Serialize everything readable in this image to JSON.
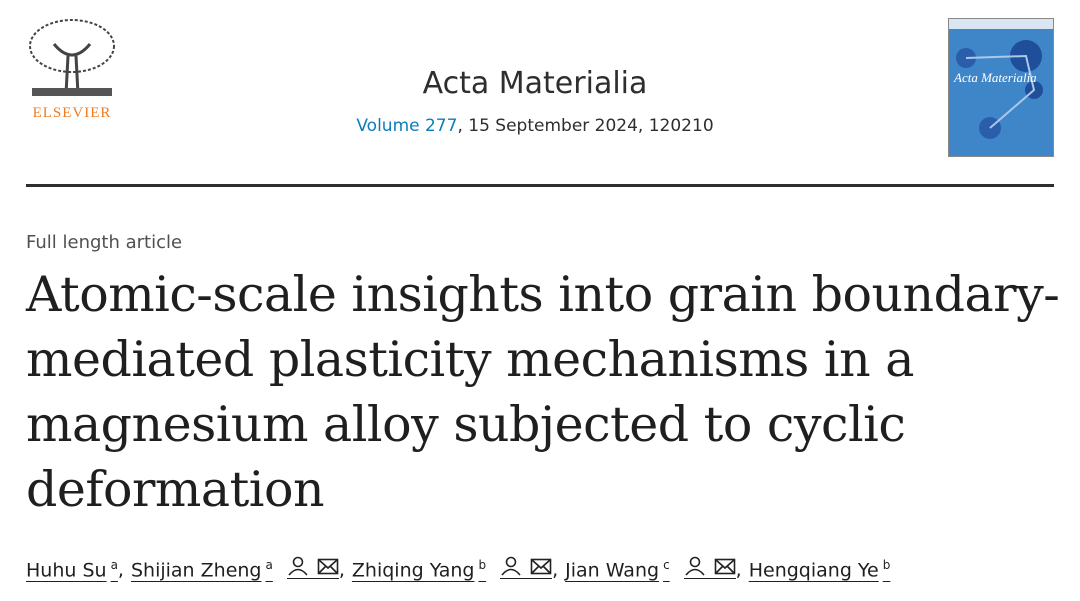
{
  "header": {
    "publisher": "ELSEVIER",
    "journal": "Acta Materialia",
    "volume_link": "Volume 277",
    "issue_info": ", 15 September 2024, 120210",
    "cover_title": "Acta Materialia"
  },
  "article": {
    "type": "Full length article",
    "title_lines": [
      "Atomic-scale insights into grain boundary-",
      "mediated plasticity mechanisms in a",
      "magnesium alloy subjected to cyclic",
      "deformation"
    ],
    "authors": [
      {
        "name": "Huhu Su",
        "affiliation": "a",
        "contact": false
      },
      {
        "name": "Shijian Zheng",
        "affiliation": "a",
        "contact": true
      },
      {
        "name": "Zhiqing Yang",
        "affiliation": "b",
        "contact": true
      },
      {
        "name": "Jian Wang",
        "affiliation": "c",
        "contact": true
      },
      {
        "name": "Hengqiang Ye",
        "affiliation": "b",
        "contact": false
      }
    ],
    "author_separator": ","
  }
}
